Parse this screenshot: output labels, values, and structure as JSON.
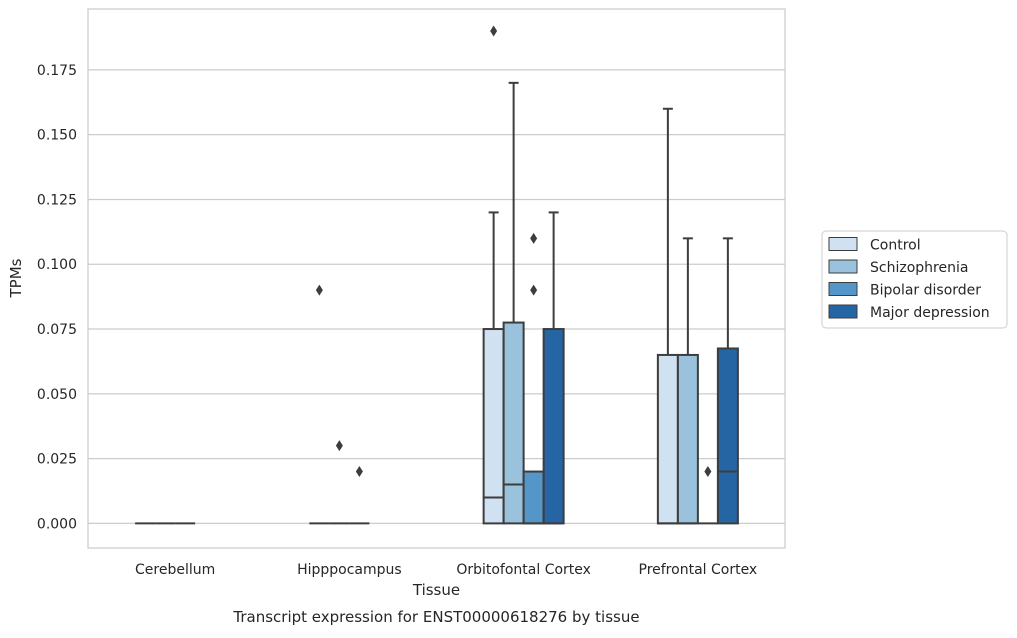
{
  "chart_data": {
    "type": "box",
    "title": "Transcript expression for ENST00000618276 by tissue",
    "xlabel": "Tissue",
    "ylabel": "TPMs",
    "ylim": [
      -0.0095,
      0.1985
    ],
    "yticks": [
      0.0,
      0.025,
      0.05,
      0.075,
      0.1,
      0.125,
      0.15,
      0.175
    ],
    "ytick_labels": [
      "0.000",
      "0.025",
      "0.050",
      "0.075",
      "0.100",
      "0.125",
      "0.150",
      "0.175"
    ],
    "grid": "y",
    "legend_position": "right",
    "categories": [
      "Cerebellum",
      "Hipppocampus",
      "Orbitofontal Cortex",
      "Prefrontal Cortex"
    ],
    "series": [
      {
        "name": "Control",
        "color": "#d0e1f2",
        "boxes": [
          {
            "whisker_low": 0.0,
            "q1": 0.0,
            "median": 0.0,
            "q3": 0.0,
            "whisker_high": 0.0,
            "outliers": []
          },
          {
            "whisker_low": 0.0,
            "q1": 0.0,
            "median": 0.0,
            "q3": 0.0,
            "whisker_high": 0.0,
            "outliers": [
              0.09
            ]
          },
          {
            "whisker_low": 0.0,
            "q1": 0.0,
            "median": 0.01,
            "q3": 0.075,
            "whisker_high": 0.12,
            "outliers": [
              0.19
            ]
          },
          {
            "whisker_low": 0.0,
            "q1": 0.0,
            "median": 0.0,
            "q3": 0.065,
            "whisker_high": 0.16,
            "outliers": []
          }
        ]
      },
      {
        "name": "Schizophrenia",
        "color": "#9ac2dc",
        "boxes": [
          {
            "whisker_low": 0.0,
            "q1": 0.0,
            "median": 0.0,
            "q3": 0.0,
            "whisker_high": 0.0,
            "outliers": []
          },
          {
            "whisker_low": 0.0,
            "q1": 0.0,
            "median": 0.0,
            "q3": 0.0,
            "whisker_high": 0.0,
            "outliers": [
              0.03
            ]
          },
          {
            "whisker_low": 0.0,
            "q1": 0.0,
            "median": 0.015,
            "q3": 0.0775,
            "whisker_high": 0.17,
            "outliers": []
          },
          {
            "whisker_low": 0.0,
            "q1": 0.0,
            "median": 0.0,
            "q3": 0.065,
            "whisker_high": 0.11,
            "outliers": []
          }
        ]
      },
      {
        "name": "Bipolar disorder",
        "color": "#5496c7",
        "boxes": [
          {
            "whisker_low": 0.0,
            "q1": 0.0,
            "median": 0.0,
            "q3": 0.0,
            "whisker_high": 0.0,
            "outliers": []
          },
          {
            "whisker_low": 0.0,
            "q1": 0.0,
            "median": 0.0,
            "q3": 0.0,
            "whisker_high": 0.0,
            "outliers": [
              0.02
            ]
          },
          {
            "whisker_low": 0.0,
            "q1": 0.0,
            "median": 0.0,
            "q3": 0.02,
            "whisker_high": 0.02,
            "outliers": [
              0.09,
              0.11
            ]
          },
          {
            "whisker_low": 0.0,
            "q1": 0.0,
            "median": 0.0,
            "q3": 0.0,
            "whisker_high": 0.0,
            "outliers": [
              0.02
            ]
          }
        ]
      },
      {
        "name": "Major depression",
        "color": "#2665a3",
        "boxes": [
          null,
          null,
          {
            "whisker_low": 0.0,
            "q1": 0.0,
            "median": 0.0,
            "q3": 0.075,
            "whisker_high": 0.12,
            "outliers": []
          },
          {
            "whisker_low": 0.0,
            "q1": 0.0,
            "median": 0.02,
            "q3": 0.0675,
            "whisker_high": 0.11,
            "outliers": []
          }
        ]
      }
    ]
  }
}
